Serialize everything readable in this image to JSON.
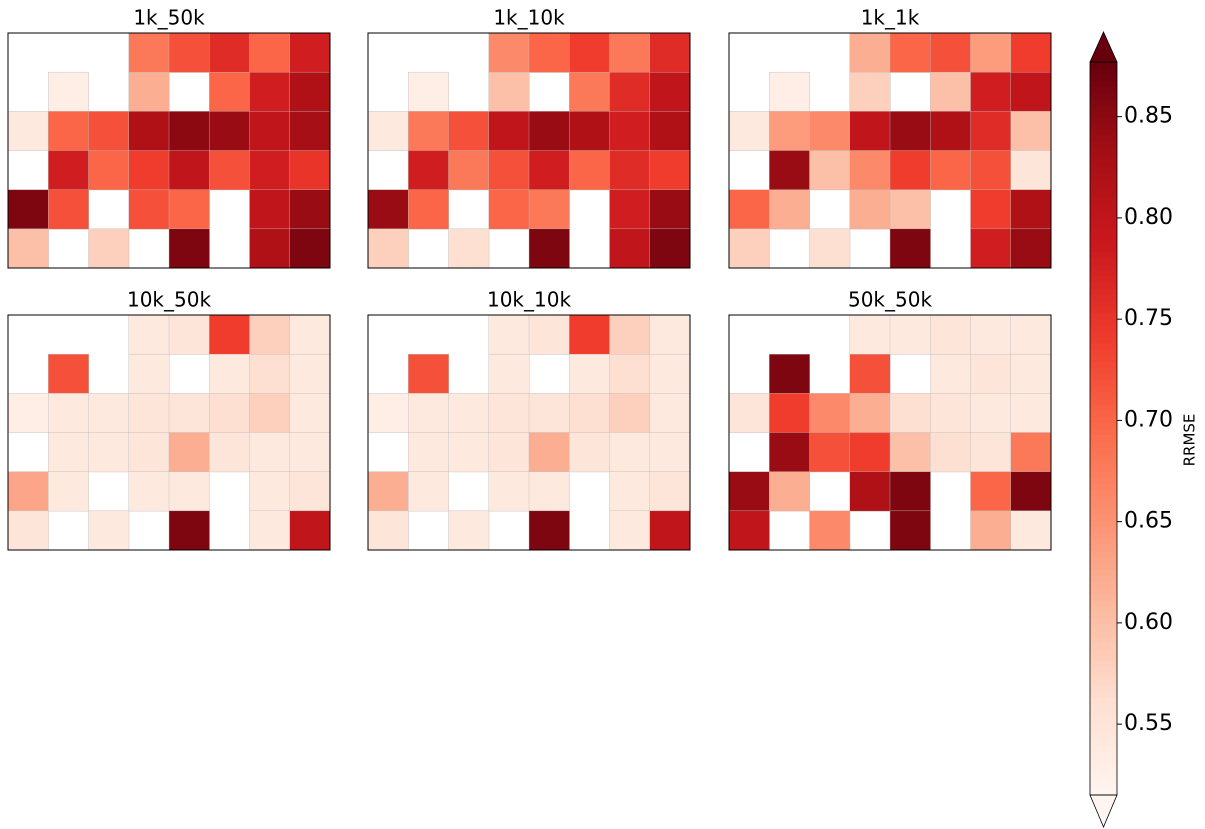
{
  "chart_data": {
    "type": "choropleth-grid",
    "panels": [
      {
        "title": "1k_50k",
        "cells": [
          [
            null,
            null,
            null,
            0.68,
            0.72,
            0.76,
            0.7,
            0.78
          ],
          [
            null,
            0.53,
            null,
            0.62,
            null,
            0.7,
            0.78,
            0.82
          ],
          [
            0.54,
            0.7,
            0.72,
            0.82,
            0.85,
            0.84,
            0.8,
            0.83
          ],
          [
            null,
            0.78,
            0.7,
            0.74,
            0.8,
            0.72,
            0.78,
            0.75
          ],
          [
            0.86,
            0.72,
            null,
            0.72,
            0.7,
            null,
            0.8,
            0.84
          ],
          [
            0.6,
            null,
            0.58,
            null,
            0.86,
            null,
            0.82,
            0.86
          ]
        ]
      },
      {
        "title": "1k_10k",
        "cells": [
          [
            null,
            null,
            null,
            0.66,
            0.7,
            0.74,
            0.68,
            0.76
          ],
          [
            null,
            0.53,
            null,
            0.6,
            null,
            0.68,
            0.76,
            0.8
          ],
          [
            0.54,
            0.68,
            0.72,
            0.8,
            0.84,
            0.82,
            0.78,
            0.82
          ],
          [
            null,
            0.78,
            0.68,
            0.72,
            0.78,
            0.7,
            0.76,
            0.74
          ],
          [
            0.84,
            0.7,
            null,
            0.7,
            0.68,
            null,
            0.78,
            0.84
          ],
          [
            0.58,
            null,
            0.56,
            null,
            0.86,
            null,
            0.8,
            0.86
          ]
        ]
      },
      {
        "title": "1k_1k",
        "cells": [
          [
            null,
            null,
            null,
            0.62,
            0.7,
            0.72,
            0.64,
            0.74
          ],
          [
            null,
            0.53,
            null,
            0.58,
            null,
            0.6,
            0.78,
            0.8
          ],
          [
            0.54,
            0.64,
            0.66,
            0.8,
            0.84,
            0.82,
            0.76,
            0.6
          ],
          [
            null,
            0.84,
            0.6,
            0.66,
            0.74,
            0.7,
            0.72,
            0.55
          ],
          [
            0.7,
            0.62,
            null,
            0.62,
            0.6,
            null,
            0.74,
            0.82
          ],
          [
            0.58,
            null,
            0.56,
            null,
            0.86,
            null,
            0.78,
            0.84
          ]
        ]
      },
      {
        "title": "10k_50k",
        "cells": [
          [
            null,
            null,
            null,
            0.54,
            0.55,
            0.74,
            0.58,
            0.54
          ],
          [
            null,
            0.72,
            null,
            0.54,
            null,
            0.54,
            0.56,
            0.54
          ],
          [
            0.53,
            0.54,
            0.54,
            0.55,
            0.55,
            0.56,
            0.58,
            0.54
          ],
          [
            null,
            0.54,
            0.54,
            0.55,
            0.62,
            0.55,
            0.54,
            0.54
          ],
          [
            0.63,
            0.54,
            null,
            0.54,
            0.54,
            null,
            0.54,
            0.55
          ],
          [
            0.55,
            null,
            0.54,
            null,
            0.86,
            null,
            0.54,
            0.8
          ]
        ]
      },
      {
        "title": "10k_10k",
        "cells": [
          [
            null,
            null,
            null,
            0.54,
            0.55,
            0.74,
            0.58,
            0.54
          ],
          [
            null,
            0.72,
            null,
            0.54,
            null,
            0.54,
            0.56,
            0.54
          ],
          [
            0.53,
            0.54,
            0.54,
            0.55,
            0.55,
            0.56,
            0.58,
            0.54
          ],
          [
            null,
            0.54,
            0.54,
            0.55,
            0.62,
            0.55,
            0.54,
            0.54
          ],
          [
            0.62,
            0.54,
            null,
            0.54,
            0.54,
            null,
            0.54,
            0.55
          ],
          [
            0.55,
            null,
            0.54,
            null,
            0.86,
            null,
            0.54,
            0.8
          ]
        ]
      },
      {
        "title": "50k_50k",
        "cells": [
          [
            null,
            null,
            null,
            0.54,
            0.54,
            0.55,
            0.54,
            0.54
          ],
          [
            null,
            0.86,
            null,
            0.72,
            null,
            0.54,
            0.55,
            0.54
          ],
          [
            0.55,
            0.74,
            0.66,
            0.62,
            0.56,
            0.55,
            0.54,
            0.54
          ],
          [
            null,
            0.84,
            0.72,
            0.74,
            0.6,
            0.56,
            0.55,
            0.68
          ],
          [
            0.84,
            0.62,
            null,
            0.82,
            0.86,
            null,
            0.7,
            0.86
          ],
          [
            0.8,
            null,
            0.66,
            null,
            0.86,
            null,
            0.62,
            0.54
          ]
        ]
      }
    ],
    "colorbar": {
      "label": "RRMSE",
      "lim": [
        0.515,
        0.877
      ],
      "ticks": [
        0.55,
        {
          "value": 0.6,
          "label": "0.60"
        },
        0.65,
        {
          "value": 0.7,
          "label": "0.70"
        },
        0.75,
        {
          "value": 0.8,
          "label": "0.80"
        },
        0.85
      ],
      "extend": "both",
      "colors": [
        "#fff5f0",
        "#fee0d2",
        "#fcbba1",
        "#fc9272",
        "#fb6a4a",
        "#ef3b2c",
        "#cb181d",
        "#a50f15",
        "#67000d"
      ]
    }
  }
}
